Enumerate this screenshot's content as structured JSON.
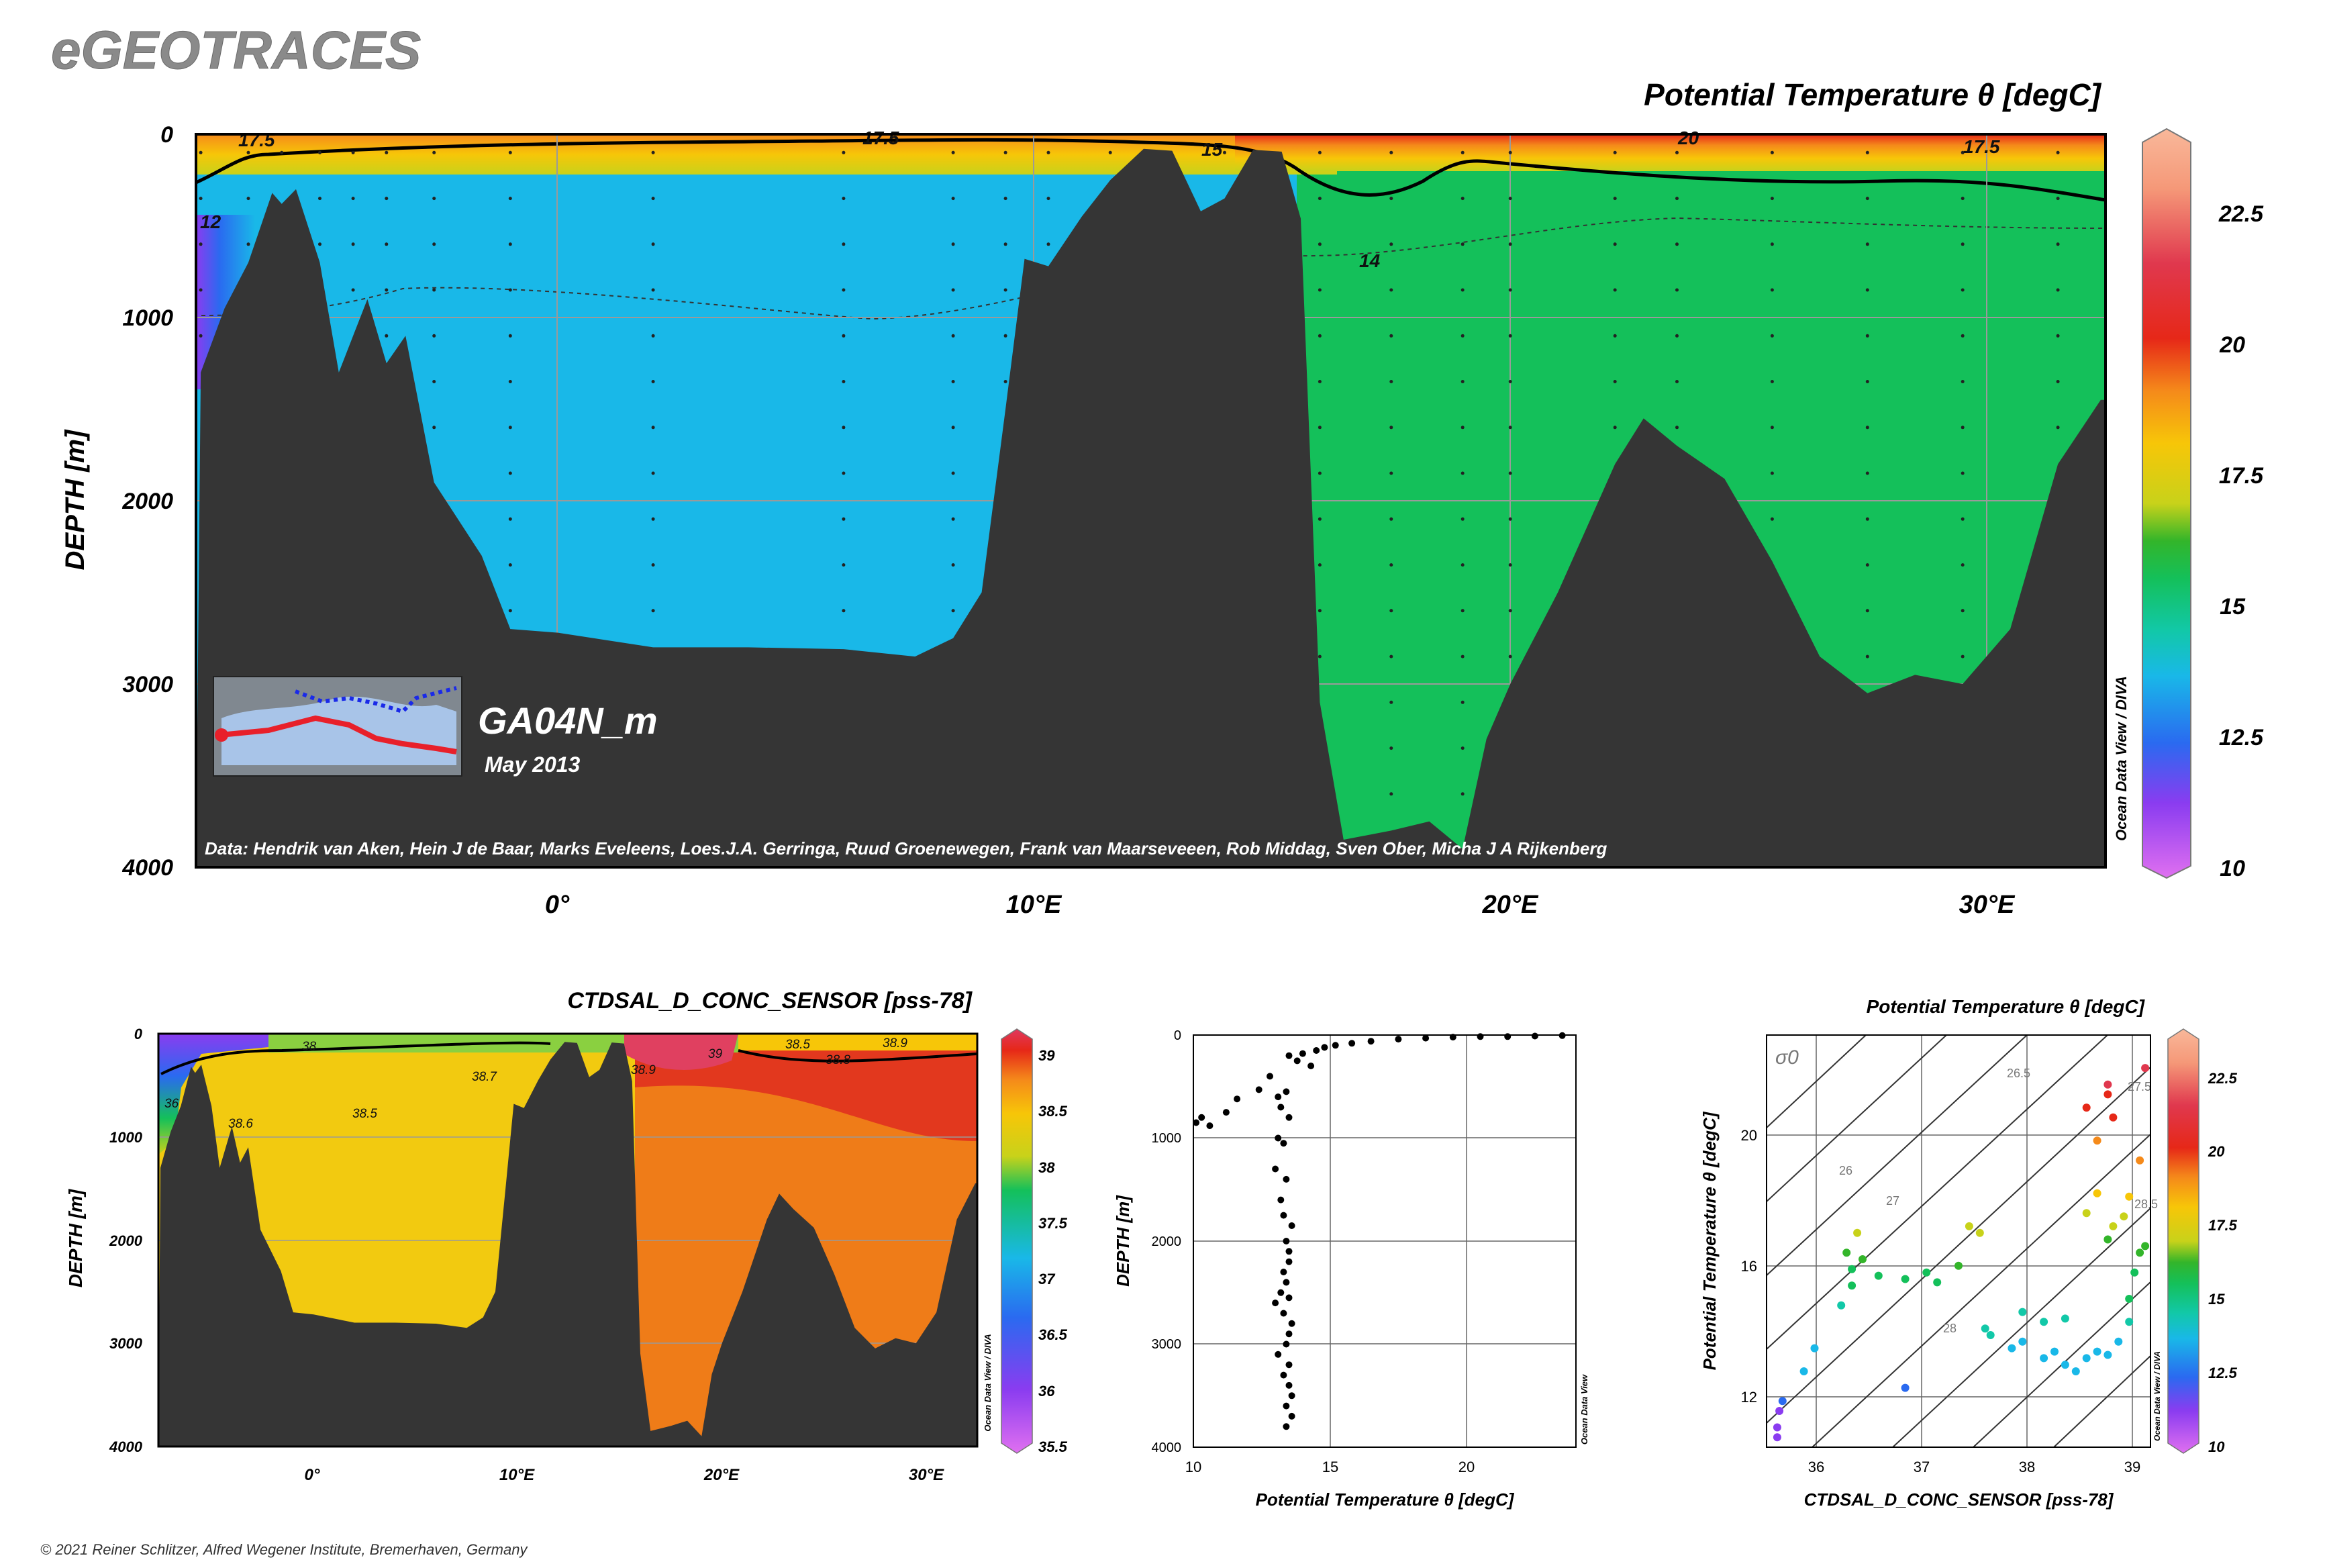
{
  "brand": "eGEOTRACES",
  "copyright": "© 2021 Reiner Schlitzer, Alfred Wegener Institute, Bremerhaven, Germany",
  "watermark": "Ocean Data View / DIVA",
  "watermark_short": "Ocean Data View",
  "colors": {
    "ramp": [
      "#e070f0",
      "#8a3cf0",
      "#2a6af0",
      "#19b8e8",
      "#12c8a8",
      "#14c05a",
      "#33b52a",
      "#c8d21a",
      "#f7c608",
      "#f58a1a",
      "#e62818",
      "#e0384e",
      "#f59878",
      "#f9b89a"
    ],
    "land": "#353535",
    "salt_ramp": [
      "#e070f0",
      "#8a3cf0",
      "#2a6af0",
      "#19b8e8",
      "#14c05a",
      "#c8d21a",
      "#f7c608",
      "#f58a1a",
      "#e62818",
      "#e0385e"
    ]
  },
  "main_section": {
    "title": "Potential Temperature θ [degC]",
    "ylabel": "DEPTH [m]",
    "yticks": [
      "0",
      "1000",
      "2000",
      "3000",
      "4000"
    ],
    "xticks": [
      "0°",
      "10°E",
      "20°E",
      "30°E"
    ],
    "cruise": "GA04N_m",
    "date": "May 2013",
    "credits": "Data: Hendrik van Aken, Hein J de Baar, Marks Eveleens, Loes.J.A. Gerringa, Ruud Groenewegen, Frank van Maarseveeen, Rob Middag, Sven Ober, Micha J A Rijkenberg",
    "contour_labels": [
      "17.5",
      "17.5",
      "15",
      "20",
      "17.5",
      "14",
      "12"
    ],
    "colorbar_ticks": [
      "22.5",
      "20",
      "17.5",
      "15",
      "12.5",
      "10"
    ]
  },
  "salinity_section": {
    "title": "CTDSAL_D_CONC_SENSOR [pss-78]",
    "ylabel": "DEPTH [m]",
    "yticks": [
      "0",
      "1000",
      "2000",
      "3000",
      "4000"
    ],
    "xticks": [
      "0°",
      "10°E",
      "20°E",
      "30°E"
    ],
    "contour_labels": [
      "38",
      "38.7",
      "38.5",
      "38.6",
      "39",
      "38.5",
      "38.8",
      "38.9",
      "38.9",
      "36"
    ],
    "colorbar_ticks": [
      "39",
      "38.5",
      "38",
      "37.5",
      "37",
      "36.5",
      "36",
      "35.5"
    ]
  },
  "profile_plot": {
    "ylabel": "DEPTH [m]",
    "xlabel": "Potential Temperature θ [degC]",
    "yticks": [
      "0",
      "1000",
      "2000",
      "3000",
      "4000"
    ],
    "xticks": [
      "10",
      "15",
      "20"
    ]
  },
  "ts_plot": {
    "title": "Potential Temperature θ [degC]",
    "ylabel": "Potential Temperature θ [degC]",
    "xlabel": "CTDSAL_D_CONC_SENSOR [pss-78]",
    "sigma_label": "σ0",
    "yticks": [
      "20",
      "16",
      "12"
    ],
    "xticks": [
      "36",
      "37",
      "38",
      "39"
    ],
    "isopycnal_labels": [
      "26",
      "26.5",
      "27",
      "27.5",
      "28",
      "28.5"
    ],
    "colorbar_ticks": [
      "22.5",
      "20",
      "17.5",
      "15",
      "12.5",
      "10"
    ]
  },
  "chart_data": [
    {
      "type": "heatmap",
      "title": "Potential Temperature θ [degC]",
      "ylabel": "DEPTH [m]",
      "xlim": [
        -7.6,
        32.5
      ],
      "ylim": [
        4000,
        0
      ],
      "colorbar_range": [
        10,
        24
      ],
      "bottom_profile": {
        "x": [
          -7.5,
          -7,
          -6.5,
          -6,
          -5.8,
          -5.5,
          -5,
          -4.6,
          -4.3,
          -4,
          -3.6,
          -3.2,
          -2.6,
          -1.6,
          -1,
          0,
          2,
          4,
          6,
          7.5,
          8.3,
          8.9,
          9.4,
          9.8,
          10.3,
          11,
          11.6,
          12.3,
          12.9,
          13.5,
          14,
          14.6,
          15.2,
          15.6,
          16,
          16.5,
          17.5,
          18.3,
          19,
          19.5,
          20,
          21,
          22.2,
          22.8,
          23.5,
          24.5,
          25.5,
          26.5,
          27.5,
          28.5,
          29.5,
          30.5,
          31.5,
          32.4
        ],
        "depth": [
          1300,
          950,
          700,
          320,
          380,
          300,
          700,
          1300,
          1100,
          900,
          1250,
          1100,
          1900,
          2300,
          2700,
          2720,
          2800,
          2800,
          2810,
          2850,
          2750,
          2500,
          1500,
          680,
          720,
          450,
          250,
          80,
          90,
          420,
          350,
          85,
          95,
          460,
          3100,
          3850,
          3800,
          3750,
          3900,
          3300,
          3000,
          2500,
          1800,
          1550,
          1700,
          1880,
          2330,
          2850,
          3050,
          2950,
          3000,
          2700,
          1800,
          1450
        ]
      },
      "isotherm_15_depth": {
        "x": [
          -7.6,
          -6,
          -4,
          -2,
          0,
          2,
          4,
          6,
          8,
          10,
          12,
          14,
          15.6,
          16.5,
          18,
          19,
          20,
          22,
          24,
          26,
          28,
          30,
          32.4
        ],
        "depth": [
          260,
          170,
          110,
          80,
          70,
          70,
          65,
          55,
          60,
          60,
          55,
          60,
          80,
          300,
          340,
          170,
          190,
          220,
          270,
          270,
          250,
          270,
          360
        ]
      }
    },
    {
      "type": "heatmap",
      "title": "CTDSAL_D_CONC_SENSOR [pss-78]",
      "ylabel": "DEPTH [m]",
      "xlim": [
        -7.6,
        32.5
      ],
      "ylim": [
        4000,
        0
      ],
      "colorbar_range": [
        35.5,
        39.2
      ]
    },
    {
      "type": "scatter",
      "xlabel": "Potential Temperature θ [degC]",
      "ylabel": "DEPTH [m]",
      "xlim": [
        10,
        24
      ],
      "ylim": [
        4000,
        0
      ],
      "x": [
        10.1,
        10.3,
        10.6,
        11.2,
        11.6,
        12.4,
        12.8,
        13.1,
        13.3,
        13.1,
        13.4,
        13.2,
        13.5,
        13.0,
        13.4,
        13.2,
        13.3,
        13.6,
        13.4,
        13.5,
        13.5,
        13.3,
        13.4,
        13.2,
        13.5,
        13.0,
        13.3,
        13.6,
        13.5,
        13.4,
        13.1,
        13.5,
        13.3,
        13.5,
        13.6,
        13.4,
        13.6,
        13.4,
        13.5,
        13.8,
        14.0,
        14.3,
        14.5,
        14.8,
        15.2,
        15.8,
        16.5,
        17.5,
        18.5,
        19.5,
        20.5,
        21.5,
        22.5,
        23.5
      ],
      "y": [
        850,
        800,
        880,
        750,
        620,
        530,
        400,
        1000,
        1050,
        600,
        550,
        700,
        800,
        1300,
        1400,
        1600,
        1750,
        1850,
        2000,
        2100,
        2200,
        2300,
        2400,
        2500,
        2550,
        2600,
        2700,
        2800,
        2900,
        3000,
        3100,
        3200,
        3300,
        3400,
        3500,
        3600,
        3700,
        3800,
        200,
        250,
        180,
        300,
        150,
        120,
        100,
        80,
        60,
        40,
        30,
        20,
        15,
        15,
        10,
        5
      ]
    },
    {
      "type": "scatter",
      "title": "Potential Temperature θ [degC]",
      "xlabel": "CTDSAL_D_CONC_SENSOR [pss-78]",
      "ylabel": "Potential Temperature θ [degC]",
      "xlim": [
        35.5,
        39.1
      ],
      "ylim": [
        10.5,
        23
      ],
      "x": [
        35.6,
        35.6,
        35.62,
        35.65,
        35.85,
        35.95,
        36.2,
        36.3,
        36.3,
        36.25,
        36.35,
        36.4,
        36.55,
        36.8,
        36.8,
        37.0,
        37.1,
        37.3,
        37.4,
        37.5,
        37.55,
        37.6,
        37.8,
        37.9,
        38.1,
        38.2,
        38.3,
        38.4,
        38.5,
        38.6,
        38.7,
        38.8,
        38.9,
        38.9,
        38.95,
        39.0,
        39.05,
        38.7,
        38.75,
        38.85,
        38.9,
        39.0,
        39.05,
        38.5,
        38.6,
        38.7,
        38.7,
        38.75,
        38.6,
        38.5,
        37.9,
        38.1,
        38.3
      ],
      "y": [
        10.8,
        11.1,
        11.6,
        11.9,
        12.8,
        13.5,
        14.8,
        15.4,
        15.9,
        16.4,
        17.0,
        16.2,
        15.7,
        15.6,
        12.3,
        15.8,
        15.5,
        16.0,
        17.2,
        17.0,
        14.1,
        13.9,
        13.5,
        13.7,
        13.2,
        13.4,
        13.0,
        12.8,
        13.2,
        13.4,
        13.3,
        13.7,
        14.3,
        15.0,
        15.8,
        16.4,
        16.6,
        16.8,
        17.2,
        17.5,
        18.1,
        19.2,
        22.0,
        20.8,
        19.8,
        21.2,
        21.5,
        20.5,
        18.2,
        17.6,
        14.6,
        14.3,
        14.4
      ]
    }
  ]
}
